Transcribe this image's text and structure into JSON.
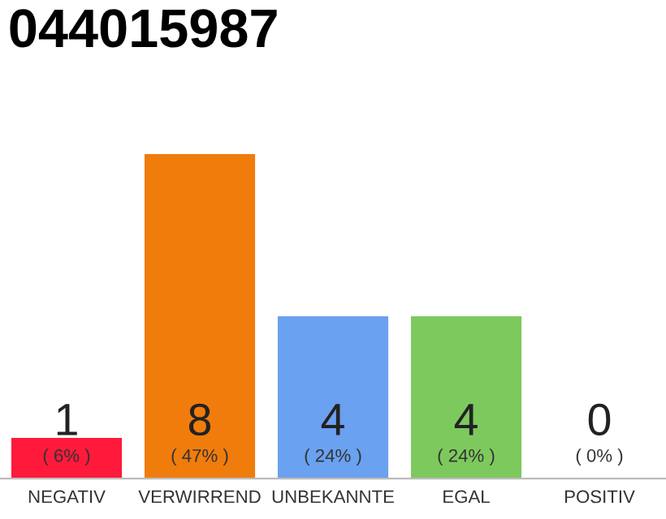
{
  "chart_data": {
    "type": "bar",
    "title": "044015987",
    "categories": [
      "NEGATIV",
      "VERWIRREND",
      "UNBEKANNTE",
      "EGAL",
      "POSITIV"
    ],
    "values": [
      1,
      8,
      4,
      4,
      0
    ],
    "colors": [
      "#ff1a3c",
      "#f07c0c",
      "#6aa1f0",
      "#7dc95e",
      "#cccccc"
    ],
    "ylim": [
      0,
      8
    ],
    "data_labels": true,
    "grid": false,
    "legend": false,
    "annotations": [
      "( 6% )",
      "( 47% )",
      "( 24% )",
      "( 24% )",
      "( 0% )"
    ]
  }
}
